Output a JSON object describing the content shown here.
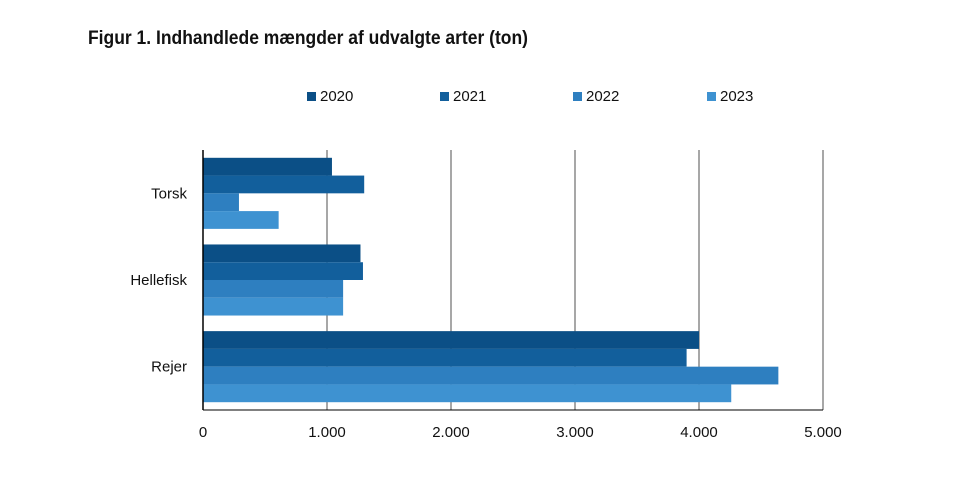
{
  "chart_data": {
    "type": "bar",
    "orientation": "horizontal",
    "title": "Figur 1. Indhandlede mængder af udvalgte arter (ton)",
    "categories": [
      "Torsk",
      "Hellefisk",
      "Rejer"
    ],
    "series": [
      {
        "name": "2020",
        "color": "#0b4f86",
        "values": [
          1040,
          1270,
          4000
        ]
      },
      {
        "name": "2021",
        "color": "#125f9c",
        "values": [
          1300,
          1290,
          3900
        ]
      },
      {
        "name": "2022",
        "color": "#2e7fc0",
        "values": [
          290,
          1130,
          4640
        ]
      },
      {
        "name": "2023",
        "color": "#3e92d1",
        "values": [
          610,
          1130,
          4260
        ]
      }
    ],
    "xlim": [
      0,
      5000
    ],
    "xticks": [
      0,
      1000,
      2000,
      3000,
      4000,
      5000
    ],
    "xtick_labels": [
      "0",
      "1.000",
      "2.000",
      "3.000",
      "4.000",
      "5.000"
    ],
    "xlabel": "",
    "ylabel": "",
    "grid": "vertical",
    "legend_position": "top"
  }
}
